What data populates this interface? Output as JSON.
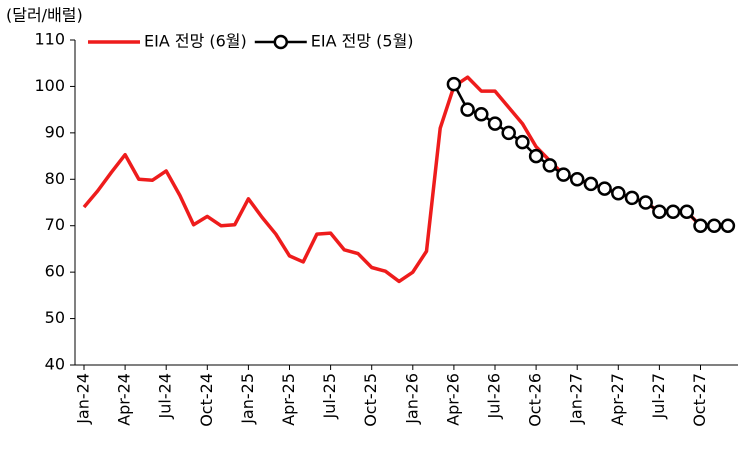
{
  "chart_data": {
    "type": "line",
    "unit_label": "(달러/배럴)",
    "categories": [
      "Jan-24",
      null,
      null,
      "Apr-24",
      null,
      null,
      "Jul-24",
      null,
      null,
      "Oct-24",
      null,
      null,
      "Jan-25",
      null,
      null,
      "Apr-25",
      null,
      null,
      "Jul-25",
      null,
      null,
      "Oct-25",
      null,
      null,
      "Jan-26",
      null,
      null,
      "Apr-26",
      null,
      null,
      "Jul-26",
      null,
      null,
      "Oct-26",
      null,
      null,
      "Jan-27",
      null,
      null,
      "Apr-27",
      null,
      null,
      "Jul-27",
      null,
      null,
      "Oct-27",
      null,
      null
    ],
    "series": [
      {
        "name": "EIA 전망 (6월)",
        "color": "#ee1c1c",
        "marker": false,
        "values": [
          74,
          77.5,
          81.5,
          85.3,
          80,
          79.8,
          81.8,
          76.5,
          70.2,
          72,
          70,
          70.2,
          75.8,
          71.8,
          68.2,
          63.5,
          62.2,
          68.2,
          68.4,
          64.8,
          64,
          61,
          60.2,
          58,
          60,
          64.5,
          91,
          100,
          102,
          99,
          99,
          95.5,
          92,
          87,
          84,
          81,
          80,
          79,
          78,
          77,
          76,
          75,
          73,
          73,
          73,
          70,
          70,
          70
        ]
      },
      {
        "name": "EIA 전망 (5월)",
        "color": "#000000",
        "marker": true,
        "values": [
          null,
          null,
          null,
          null,
          null,
          null,
          null,
          null,
          null,
          null,
          null,
          null,
          null,
          null,
          null,
          null,
          null,
          null,
          null,
          null,
          null,
          null,
          null,
          null,
          null,
          null,
          null,
          100.5,
          95,
          94,
          92,
          90,
          88,
          85,
          83,
          81,
          80,
          79,
          78,
          77,
          76,
          75,
          73,
          73,
          73,
          70,
          70,
          70
        ]
      }
    ],
    "ylim": [
      40,
      110
    ],
    "yticks": [
      40,
      50,
      60,
      70,
      80,
      90,
      100,
      110
    ],
    "grid": false
  }
}
